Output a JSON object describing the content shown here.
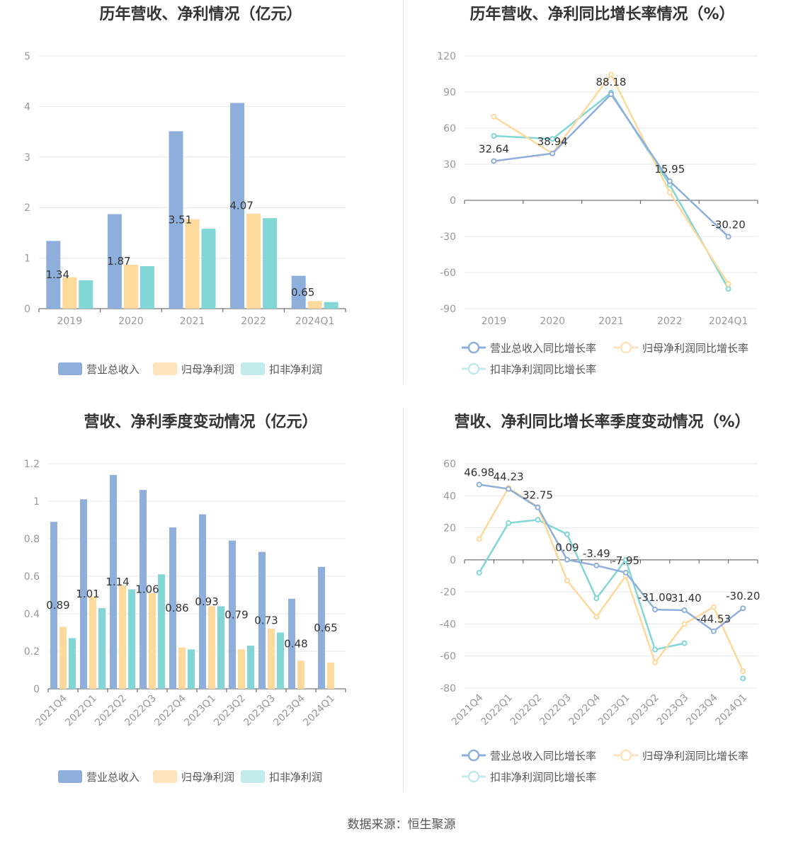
{
  "source_text": "数据来源：恒生聚源",
  "colors": {
    "revenue": "#8eaedc",
    "net_profit": "#fdd99c",
    "deducted_profit": "#82d6d6",
    "grid": "#e6e8ee",
    "axis": "#555555",
    "label": "#999999"
  },
  "chart_data": [
    {
      "type": "bar",
      "title": "历年营收、净利情况（亿元）",
      "categories": [
        "2019",
        "2020",
        "2021",
        "2022",
        "2024Q1"
      ],
      "ylim": [
        0,
        5
      ],
      "yticks": [
        0,
        1,
        2,
        3,
        4,
        5
      ],
      "series": [
        {
          "name": "营业总收入",
          "values": [
            1.34,
            1.87,
            3.51,
            4.07,
            0.65
          ],
          "labels": [
            "1.34",
            "1.87",
            "3.51",
            "4.07",
            "0.65"
          ]
        },
        {
          "name": "归母净利润",
          "values": [
            0.62,
            0.87,
            1.77,
            1.88,
            0.15
          ]
        },
        {
          "name": "扣非净利润",
          "values": [
            0.56,
            0.84,
            1.58,
            1.79,
            0.13
          ]
        }
      ],
      "legend": "bottom-center"
    },
    {
      "type": "line",
      "title": "历年营收、净利同比增长率情况（%）",
      "categories": [
        "2019",
        "2020",
        "2021",
        "2022",
        "2024Q1"
      ],
      "ylim": [
        -90,
        120
      ],
      "yticks": [
        -90,
        -60,
        -30,
        0,
        30,
        60,
        90,
        120
      ],
      "series": [
        {
          "name": "营业总收入同比增长率",
          "values": [
            32.64,
            38.94,
            88.18,
            15.95,
            -30.2
          ],
          "labels": [
            "32.64",
            "38.94",
            "88.18",
            "15.95",
            "-30.20"
          ]
        },
        {
          "name": "归母净利润同比增长率",
          "values": [
            69.5,
            39.0,
            104.5,
            6.5,
            -69.5
          ]
        },
        {
          "name": "扣非净利润同比增长率",
          "values": [
            53.5,
            51.0,
            89.5,
            13.0,
            -73.5
          ]
        }
      ],
      "legend": "bottom-left"
    },
    {
      "type": "bar",
      "title": "营收、净利季度变动情况（亿元）",
      "categories": [
        "2021Q4",
        "2022Q1",
        "2022Q2",
        "2022Q3",
        "2022Q4",
        "2023Q1",
        "2023Q2",
        "2023Q3",
        "2023Q4",
        "2024Q1"
      ],
      "ylim": [
        0,
        1.2
      ],
      "yticks": [
        0,
        0.2,
        0.4,
        0.6,
        0.8,
        1,
        1.2
      ],
      "series": [
        {
          "name": "营业总收入",
          "values": [
            0.89,
            1.01,
            1.14,
            1.06,
            0.86,
            0.93,
            0.79,
            0.73,
            0.48,
            0.65
          ],
          "labels": [
            "0.89",
            "1.01",
            "1.14",
            "1.06",
            "0.86",
            "0.93",
            "0.79",
            "0.73",
            "0.48",
            "0.65"
          ]
        },
        {
          "name": "归母净利润",
          "values": [
            0.33,
            0.49,
            0.55,
            0.51,
            0.22,
            0.44,
            0.21,
            0.32,
            0.15,
            0.14
          ]
        },
        {
          "name": "扣非净利润",
          "values": [
            0.27,
            0.43,
            0.53,
            0.61,
            0.21,
            0.44,
            0.23,
            0.3,
            0.0,
            0.0
          ]
        }
      ],
      "legend": "bottom-center"
    },
    {
      "type": "line",
      "title": "营收、净利同比增长率季度变动情况（%）",
      "categories": [
        "2021Q4",
        "2022Q1",
        "2022Q2",
        "2022Q3",
        "2022Q4",
        "2023Q1",
        "2023Q2",
        "2023Q3",
        "2023Q4",
        "2024Q1"
      ],
      "ylim": [
        -80,
        60
      ],
      "yticks": [
        -80,
        -60,
        -40,
        -20,
        0,
        20,
        40,
        60
      ],
      "series": [
        {
          "name": "营业总收入同比增长率",
          "values": [
            46.98,
            44.23,
            32.75,
            0.09,
            -3.49,
            -7.95,
            -31.0,
            -31.4,
            -44.53,
            -30.2
          ],
          "labels": [
            "46.98",
            "44.23",
            "32.75",
            "0.09",
            "-3.49",
            "-7.95",
            "-31.00",
            "-31.40",
            "-44.53",
            "-30.20"
          ]
        },
        {
          "name": "归母净利润同比增长率",
          "values": [
            13,
            45,
            33,
            -13,
            -35.5,
            -10,
            -64,
            -40,
            -29.5,
            -69.5
          ]
        },
        {
          "name": "扣非净利润同比增长率",
          "values": [
            -8,
            23,
            25,
            16,
            -24,
            0,
            -56,
            -52,
            null,
            -74
          ]
        }
      ],
      "legend": "bottom-left"
    }
  ]
}
